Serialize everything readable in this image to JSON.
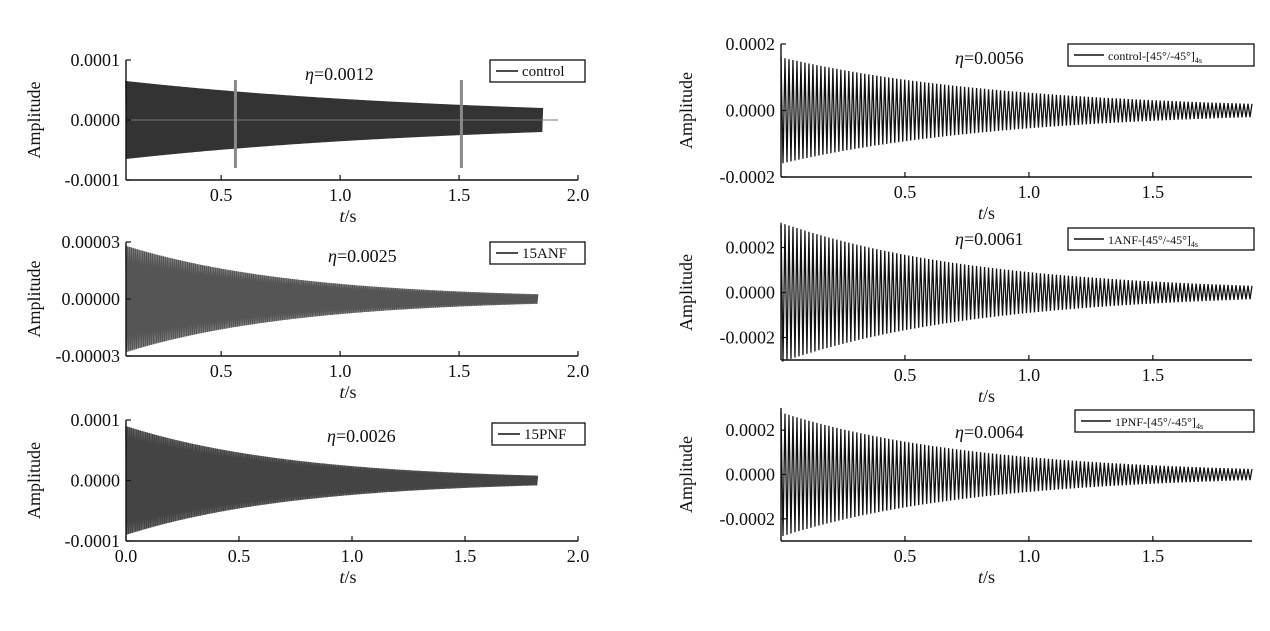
{
  "chart_data": [
    {
      "type": "line",
      "panel": "left-top",
      "ylabel": "Amplitude",
      "xlabel_var": "t",
      "xlabel_unit": "/s",
      "xlim": [
        0.1,
        2.0
      ],
      "ylim": [
        -0.0001,
        0.0001
      ],
      "xticks": [
        "0.5",
        "1.0",
        "1.5",
        "2.0"
      ],
      "yticks": [
        "0.0001",
        "0.0000",
        "-0.0001"
      ],
      "annotation": "η=0.0012",
      "legend": "control",
      "legend_style": "text",
      "color": "#333333",
      "series": {
        "t_start": 0.1,
        "t_end": 1.85,
        "amp_start": 6.5e-05,
        "amp_end": 2e-05,
        "cycles": 260
      },
      "markers_x": [
        0.56,
        1.51
      ],
      "marker_color": "#888888"
    },
    {
      "type": "line",
      "panel": "left-middle",
      "ylabel": "Amplitude",
      "xlabel_var": "t",
      "xlabel_unit": "/s",
      "xlim": [
        0.1,
        2.0
      ],
      "ylim": [
        -3e-05,
        3e-05
      ],
      "xticks": [
        "0.5",
        "1.0",
        "1.5",
        "2.0"
      ],
      "yticks": [
        "0.00003",
        "0.00000",
        "-0.00003"
      ],
      "annotation": "η=0.0025",
      "legend": "15ANF",
      "legend_style": "text",
      "color": "#555555",
      "series": {
        "t_start": 0.1,
        "t_end": 1.83,
        "amp_start": 2.8e-05,
        "amp_end": 2.5e-06,
        "cycles": 220
      }
    },
    {
      "type": "line",
      "panel": "left-bottom",
      "ylabel": "Amplitude",
      "xlabel_var": "t",
      "xlabel_unit": "/s",
      "xlim": [
        0.0,
        2.0
      ],
      "ylim": [
        -0.0001,
        0.0001
      ],
      "xticks": [
        "0.0",
        "0.5",
        "1.0",
        "1.5",
        "2.0"
      ],
      "yticks": [
        "0.0001",
        "0.0000",
        "-0.0001"
      ],
      "annotation": "η=0.0026",
      "legend": "15PNF",
      "legend_style": "text",
      "color": "#444444",
      "series": {
        "t_start": 0.0,
        "t_end": 1.82,
        "amp_start": 9e-05,
        "amp_end": 8e-06,
        "cycles": 230
      }
    },
    {
      "type": "line",
      "panel": "right-top",
      "ylabel": "Amplitude",
      "xlabel_var": "t",
      "xlabel_unit": "/s",
      "xlim": [
        0.0,
        1.9
      ],
      "ylim": [
        -0.0002,
        0.0002
      ],
      "xticks": [
        "0.5",
        "1.0",
        "1.5"
      ],
      "yticks": [
        "0.0002",
        "0.0000",
        "-0.0002"
      ],
      "annotation": "η=0.0056",
      "legend": "control-[45°/-45°]",
      "legend_sub": "4s",
      "legend_style": "small",
      "color": "#111111",
      "series": {
        "t_start": 0.0,
        "t_end": 1.9,
        "amp_start": 0.00016,
        "amp_end": 2e-05,
        "cycles": 118
      }
    },
    {
      "type": "line",
      "panel": "right-middle",
      "ylabel": "Amplitude",
      "xlabel_var": "t",
      "xlabel_unit": "/s",
      "xlim": [
        0.0,
        1.9
      ],
      "ylim": [
        -0.0003,
        0.0003
      ],
      "xticks": [
        "0.5",
        "1.0",
        "1.5"
      ],
      "yticks": [
        "0.0002",
        "0.0000",
        "-0.0002"
      ],
      "ytick_values": [
        0.0002,
        0.0,
        -0.0002
      ],
      "annotation": "η=0.0061",
      "legend": "1ANF-[45°/-45°]",
      "legend_sub": "4s",
      "legend_style": "small",
      "color": "#111111",
      "series": {
        "t_start": 0.0,
        "t_end": 1.9,
        "amp_start": 0.00031,
        "amp_end": 3e-05,
        "cycles": 118
      }
    },
    {
      "type": "line",
      "panel": "right-bottom",
      "ylabel": "Amplitude",
      "xlabel_var": "t",
      "xlabel_unit": "/s",
      "xlim": [
        0.0,
        1.9
      ],
      "ylim": [
        -0.0003,
        0.0003
      ],
      "xticks": [
        "0.5",
        "1.0",
        "1.5"
      ],
      "yticks": [
        "0.0002",
        "0.0000",
        "-0.0002"
      ],
      "ytick_values": [
        0.0002,
        0.0,
        -0.0002
      ],
      "annotation": "η=0.0064",
      "legend": "1PNF-[45°/-45°]",
      "legend_sub": "4s",
      "legend_style": "small",
      "color": "#111111",
      "series": {
        "t_start": 0.0,
        "t_end": 1.9,
        "amp_start": 0.00028,
        "amp_end": 2.5e-05,
        "cycles": 118
      }
    }
  ]
}
